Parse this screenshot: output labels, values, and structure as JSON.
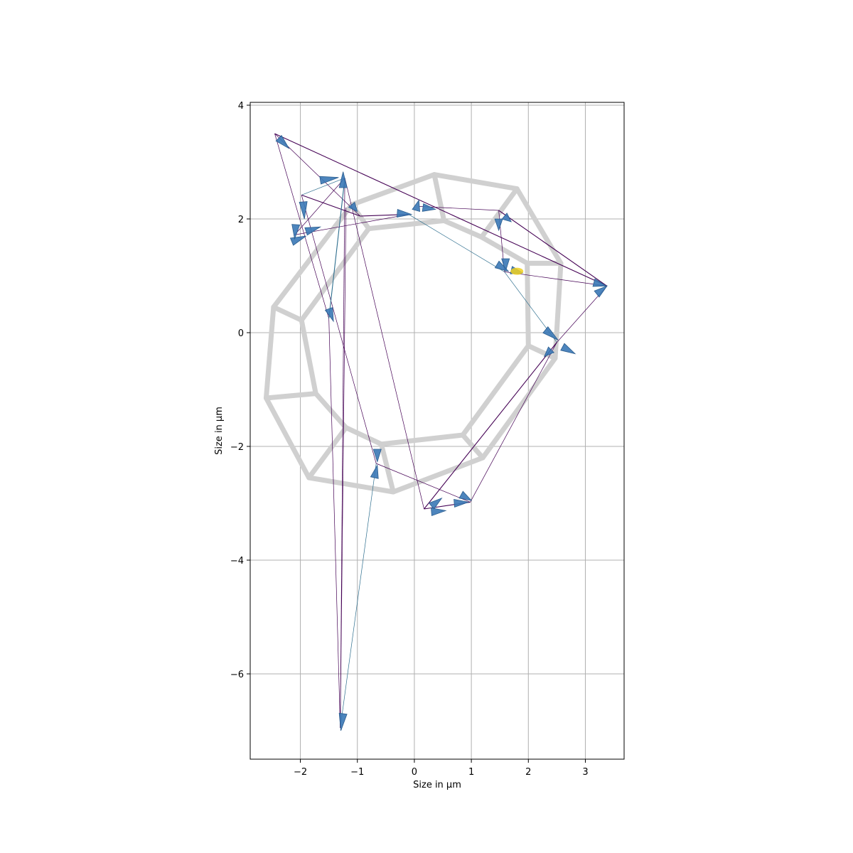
{
  "chart_data": {
    "type": "scatter",
    "title": "",
    "xlabel": "Size in µm",
    "ylabel": "Size in µm",
    "xlim": [
      -2.88,
      3.68
    ],
    "ylim": [
      -7.5,
      4.05
    ],
    "xticks": [
      -2,
      -1,
      0,
      1,
      2,
      3
    ],
    "yticks": [
      -6,
      -4,
      -2,
      0,
      2,
      4
    ],
    "xtick_labels": [
      "−2",
      "−1",
      "0",
      "1",
      "2",
      "3"
    ],
    "ytick_labels": [
      "−6",
      "−4",
      "−2",
      "0",
      "2",
      "4"
    ],
    "grid": true,
    "colors": {
      "ring": "#d0d0d0",
      "arrow_fill": "#3a78b6",
      "arrow_edge": "#2b5d8e",
      "link": "#440154",
      "link_alt": "#2d6e8e",
      "highlight": "#f0d020",
      "grid": "#b0b0b0"
    },
    "ring_outer": [
      [
        0.35,
        2.78
      ],
      [
        1.8,
        2.53
      ],
      [
        2.57,
        1.22
      ],
      [
        2.47,
        -0.45
      ],
      [
        1.2,
        -2.2
      ],
      [
        -0.37,
        -2.8
      ],
      [
        -1.85,
        -2.55
      ],
      [
        -2.6,
        -1.15
      ],
      [
        -2.47,
        0.45
      ],
      [
        -1.1,
        2.25
      ]
    ],
    "ring_inner": [
      [
        0.52,
        1.97
      ],
      [
        1.18,
        1.68
      ],
      [
        1.98,
        1.22
      ],
      [
        2.0,
        -0.23
      ],
      [
        0.85,
        -1.8
      ],
      [
        -0.58,
        -1.96
      ],
      [
        -1.2,
        -1.67
      ],
      [
        -1.73,
        -1.07
      ],
      [
        -1.98,
        0.22
      ],
      [
        -0.8,
        1.83
      ]
    ],
    "ring_spokes": [
      [
        [
          0.35,
          2.78
        ],
        [
          0.52,
          1.97
        ]
      ],
      [
        [
          1.8,
          2.53
        ],
        [
          1.18,
          1.68
        ]
      ],
      [
        [
          2.57,
          1.22
        ],
        [
          1.98,
          1.22
        ]
      ],
      [
        [
          2.47,
          -0.45
        ],
        [
          2.0,
          -0.23
        ]
      ],
      [
        [
          1.2,
          -2.2
        ],
        [
          0.85,
          -1.8
        ]
      ],
      [
        [
          -0.37,
          -2.8
        ],
        [
          -0.58,
          -1.96
        ]
      ],
      [
        [
          -1.85,
          -2.55
        ],
        [
          -1.2,
          -1.67
        ]
      ],
      [
        [
          -2.6,
          -1.15
        ],
        [
          -1.73,
          -1.07
        ]
      ],
      [
        [
          -2.47,
          0.45
        ],
        [
          -1.98,
          0.22
        ]
      ],
      [
        [
          -1.1,
          2.25
        ],
        [
          -0.8,
          1.83
        ]
      ]
    ],
    "nodes": [
      {
        "x": -2.45,
        "y": 3.5
      },
      {
        "x": -1.98,
        "y": 2.42
      },
      {
        "x": -1.22,
        "y": 2.72
      },
      {
        "x": -1.2,
        "y": 2.2
      },
      {
        "x": -0.95,
        "y": 2.05
      },
      {
        "x": -2.1,
        "y": 1.72
      },
      {
        "x": -1.5,
        "y": 0.25
      },
      {
        "x": -0.1,
        "y": 2.08
      },
      {
        "x": 0.08,
        "y": 2.22
      },
      {
        "x": 1.48,
        "y": 2.15
      },
      {
        "x": 1.58,
        "y": 1.07
      },
      {
        "x": 1.78,
        "y": 1.07
      },
      {
        "x": 3.38,
        "y": 0.82
      },
      {
        "x": 2.5,
        "y": -0.17
      },
      {
        "x": 2.35,
        "y": -0.05
      },
      {
        "x": -0.67,
        "y": -2.3
      },
      {
        "x": 0.17,
        "y": -3.1
      },
      {
        "x": 0.98,
        "y": -2.98
      },
      {
        "x": -1.3,
        "y": -6.95
      }
    ],
    "links": [
      {
        "from": 0,
        "to": 12
      },
      {
        "from": 0,
        "to": 6
      },
      {
        "from": 0,
        "to": 4
      },
      {
        "from": 1,
        "to": 2
      },
      {
        "from": 1,
        "to": 4
      },
      {
        "from": 1,
        "to": 15
      },
      {
        "from": 2,
        "to": 18
      },
      {
        "from": 2,
        "to": 16
      },
      {
        "from": 2,
        "to": 6
      },
      {
        "from": 3,
        "to": 18
      },
      {
        "from": 5,
        "to": 2
      },
      {
        "from": 5,
        "to": 7
      },
      {
        "from": 4,
        "to": 7
      },
      {
        "from": 7,
        "to": 10
      },
      {
        "from": 8,
        "to": 9
      },
      {
        "from": 9,
        "to": 10
      },
      {
        "from": 9,
        "to": 12
      },
      {
        "from": 10,
        "to": 12
      },
      {
        "from": 10,
        "to": 13
      },
      {
        "from": 12,
        "to": 13
      },
      {
        "from": 13,
        "to": 16
      },
      {
        "from": 13,
        "to": 17
      },
      {
        "from": 15,
        "to": 17
      },
      {
        "from": 15,
        "to": 18
      },
      {
        "from": 16,
        "to": 17
      },
      {
        "from": 6,
        "to": 18
      }
    ],
    "arrows": [
      {
        "x": -2.38,
        "y": 3.42,
        "dx": 0.18,
        "dy": -0.18
      },
      {
        "x": -1.95,
        "y": 2.3,
        "dx": 0.02,
        "dy": -0.3
      },
      {
        "x": -1.65,
        "y": 2.68,
        "dx": 0.32,
        "dy": 0.05
      },
      {
        "x": -1.25,
        "y": 2.55,
        "dx": 0.0,
        "dy": 0.28
      },
      {
        "x": -1.1,
        "y": 2.25,
        "dx": 0.1,
        "dy": -0.12
      },
      {
        "x": -2.15,
        "y": 1.6,
        "dx": 0.25,
        "dy": 0.1
      },
      {
        "x": -2.08,
        "y": 1.9,
        "dx": -0.02,
        "dy": -0.25
      },
      {
        "x": -1.9,
        "y": 1.78,
        "dx": 0.25,
        "dy": 0.08
      },
      {
        "x": -1.5,
        "y": 0.42,
        "dx": 0.08,
        "dy": -0.22
      },
      {
        "x": -0.3,
        "y": 2.1,
        "dx": 0.25,
        "dy": -0.02
      },
      {
        "x": 0.03,
        "y": 2.15,
        "dx": 0.05,
        "dy": 0.18
      },
      {
        "x": 0.15,
        "y": 2.2,
        "dx": 0.22,
        "dy": -0.03
      },
      {
        "x": 1.48,
        "y": 2.0,
        "dx": 0.0,
        "dy": -0.2
      },
      {
        "x": 1.58,
        "y": 2.05,
        "dx": 0.12,
        "dy": -0.1
      },
      {
        "x": 1.6,
        "y": 1.3,
        "dx": 0.0,
        "dy": -0.22
      },
      {
        "x": 1.45,
        "y": 1.2,
        "dx": 0.2,
        "dy": -0.12
      },
      {
        "x": 1.7,
        "y": 1.1,
        "dx": 0.2,
        "dy": -0.05
      },
      {
        "x": 3.15,
        "y": 0.88,
        "dx": 0.22,
        "dy": -0.06
      },
      {
        "x": 3.2,
        "y": 0.68,
        "dx": 0.18,
        "dy": 0.14
      },
      {
        "x": 2.3,
        "y": 0.05,
        "dx": 0.22,
        "dy": -0.18
      },
      {
        "x": 2.6,
        "y": -0.25,
        "dx": 0.22,
        "dy": -0.12
      },
      {
        "x": 2.4,
        "y": -0.3,
        "dx": -0.12,
        "dy": -0.12
      },
      {
        "x": -0.65,
        "y": -2.05,
        "dx": 0.0,
        "dy": -0.22
      },
      {
        "x": -0.7,
        "y": -2.55,
        "dx": 0.05,
        "dy": 0.22
      },
      {
        "x": 0.3,
        "y": -3.05,
        "dx": 0.18,
        "dy": 0.14
      },
      {
        "x": 0.3,
        "y": -3.15,
        "dx": 0.25,
        "dy": 0.02
      },
      {
        "x": 0.7,
        "y": -3.0,
        "dx": 0.25,
        "dy": 0.02
      },
      {
        "x": 0.82,
        "y": -2.85,
        "dx": 0.18,
        "dy": -0.1
      },
      {
        "x": -1.25,
        "y": -6.7,
        "dx": -0.04,
        "dy": -0.3
      }
    ],
    "highlight": {
      "x": 1.8,
      "y": 1.08
    }
  }
}
